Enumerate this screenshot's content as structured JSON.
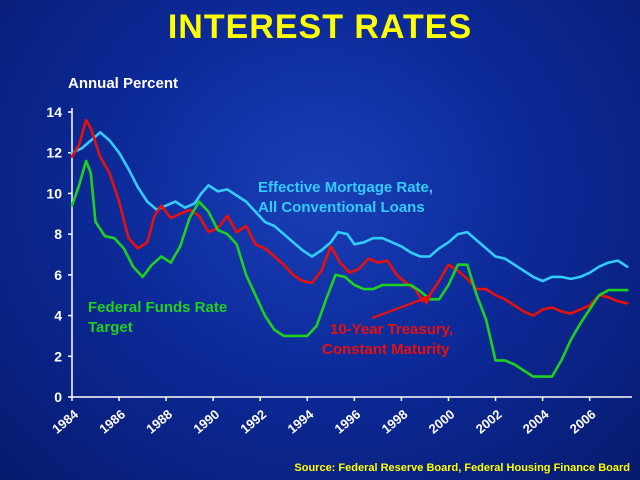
{
  "title": "INTEREST RATES",
  "source": "Source: Federal Reserve Board, Federal Housing Finance Board",
  "colors": {
    "mortgage": "#33ccff",
    "treasury": "#e8100c",
    "fedfunds": "#1fd11f",
    "title": "#ffff00",
    "axis": "#ffffff"
  },
  "chart_data": {
    "type": "line",
    "title": "INTEREST RATES",
    "ylabel": "Annual Percent",
    "xlabel": "",
    "xlim": [
      1984,
      2007.8
    ],
    "ylim": [
      0,
      14
    ],
    "yticks": [
      0,
      2,
      4,
      6,
      8,
      10,
      12,
      14
    ],
    "xticks": [
      1984,
      1986,
      1988,
      1990,
      1992,
      1994,
      1996,
      1998,
      2000,
      2002,
      2004,
      2006
    ],
    "grid": false,
    "annotations": [
      {
        "text": "Effective Mortgage Rate,",
        "series": "mortgage"
      },
      {
        "text": "All Conventional Loans",
        "series": "mortgage"
      },
      {
        "text": "Federal Funds Rate",
        "series": "fedfunds"
      },
      {
        "text": "Target",
        "series": "fedfunds"
      },
      {
        "text": "10-Year Treasury,",
        "series": "treasury"
      },
      {
        "text": "Constant Maturity",
        "series": "treasury"
      }
    ],
    "series": [
      {
        "key": "mortgage",
        "x": [
          1984.0,
          1984.4,
          1984.8,
          1985.2,
          1985.6,
          1986.0,
          1986.4,
          1986.8,
          1987.2,
          1987.6,
          1988.0,
          1988.4,
          1988.8,
          1989.2,
          1989.5,
          1989.8,
          1990.2,
          1990.6,
          1991.0,
          1991.4,
          1991.8,
          1992.2,
          1992.6,
          1993.0,
          1993.4,
          1993.8,
          1994.2,
          1994.6,
          1995.0,
          1995.3,
          1995.7,
          1996.0,
          1996.4,
          1996.8,
          1997.2,
          1997.6,
          1998.0,
          1998.4,
          1998.8,
          1999.2,
          1999.6,
          2000.0,
          2000.4,
          2000.8,
          2001.2,
          2001.6,
          2002.0,
          2002.4,
          2002.8,
          2003.2,
          2003.6,
          2004.0,
          2004.4,
          2004.8,
          2005.2,
          2005.6,
          2006.0,
          2006.4,
          2006.8,
          2007.2,
          2007.6
        ],
        "y": [
          12.0,
          12.2,
          12.6,
          13.0,
          12.6,
          12.0,
          11.2,
          10.3,
          9.6,
          9.2,
          9.4,
          9.6,
          9.3,
          9.5,
          10.0,
          10.4,
          10.1,
          10.2,
          9.9,
          9.6,
          9.1,
          8.6,
          8.4,
          8.0,
          7.6,
          7.2,
          6.9,
          7.2,
          7.6,
          8.1,
          8.0,
          7.5,
          7.6,
          7.8,
          7.8,
          7.6,
          7.4,
          7.1,
          6.9,
          6.9,
          7.3,
          7.6,
          8.0,
          8.1,
          7.7,
          7.3,
          6.9,
          6.8,
          6.5,
          6.2,
          5.9,
          5.7,
          5.9,
          5.9,
          5.8,
          5.9,
          6.1,
          6.4,
          6.6,
          6.7,
          6.4
        ]
      },
      {
        "key": "treasury",
        "x": [
          1984.0,
          1984.3,
          1984.6,
          1984.8,
          1985.2,
          1985.6,
          1986.0,
          1986.4,
          1986.8,
          1987.2,
          1987.5,
          1987.8,
          1988.2,
          1988.6,
          1989.0,
          1989.4,
          1989.8,
          1990.2,
          1990.6,
          1991.0,
          1991.4,
          1991.8,
          1992.2,
          1992.6,
          1993.0,
          1993.4,
          1993.8,
          1994.2,
          1994.6,
          1995.0,
          1995.4,
          1995.8,
          1996.2,
          1996.6,
          1997.0,
          1997.4,
          1997.8,
          1998.2,
          1998.6,
          1998.9,
          1999.2,
          1999.6,
          2000.0,
          2000.4,
          2000.8,
          2001.2,
          2001.6,
          2002.0,
          2002.4,
          2002.8,
          2003.2,
          2003.6,
          2004.0,
          2004.4,
          2004.8,
          2005.2,
          2005.6,
          2006.0,
          2006.4,
          2006.8,
          2007.2,
          2007.6
        ],
        "y": [
          11.8,
          12.4,
          13.6,
          13.2,
          11.8,
          11.0,
          9.6,
          7.8,
          7.3,
          7.6,
          8.9,
          9.4,
          8.8,
          9.0,
          9.2,
          8.9,
          8.1,
          8.3,
          8.9,
          8.1,
          8.4,
          7.5,
          7.3,
          6.9,
          6.5,
          6.0,
          5.7,
          5.6,
          6.2,
          7.4,
          6.6,
          6.1,
          6.3,
          6.8,
          6.6,
          6.7,
          6.0,
          5.6,
          5.3,
          4.7,
          5.0,
          5.7,
          6.5,
          6.2,
          5.8,
          5.3,
          5.3,
          5.0,
          4.8,
          4.5,
          4.2,
          4.0,
          4.3,
          4.4,
          4.2,
          4.1,
          4.3,
          4.5,
          5.0,
          4.9,
          4.7,
          4.6
        ]
      },
      {
        "key": "fedfunds",
        "x": [
          1984.0,
          1984.3,
          1984.6,
          1984.8,
          1985.0,
          1985.4,
          1985.8,
          1986.2,
          1986.6,
          1987.0,
          1987.4,
          1987.8,
          1988.2,
          1988.6,
          1989.0,
          1989.4,
          1989.8,
          1990.2,
          1990.6,
          1991.0,
          1991.4,
          1991.8,
          1992.2,
          1992.6,
          1993.0,
          1993.5,
          1994.0,
          1994.4,
          1994.8,
          1995.2,
          1995.6,
          1996.0,
          1996.4,
          1996.8,
          1997.2,
          1997.6,
          1998.0,
          1998.4,
          1998.8,
          1999.2,
          1999.6,
          2000.0,
          2000.4,
          2000.8,
          2001.2,
          2001.6,
          2002.0,
          2002.4,
          2002.8,
          2003.2,
          2003.6,
          2004.0,
          2004.4,
          2004.8,
          2005.2,
          2005.6,
          2006.0,
          2006.4,
          2006.8,
          2007.2,
          2007.6
        ],
        "y": [
          9.4,
          10.4,
          11.6,
          11.0,
          8.6,
          7.9,
          7.8,
          7.3,
          6.4,
          5.9,
          6.5,
          6.9,
          6.6,
          7.4,
          8.8,
          9.6,
          9.1,
          8.2,
          8.0,
          7.5,
          6.0,
          5.0,
          4.0,
          3.3,
          3.0,
          3.0,
          3.0,
          3.5,
          4.8,
          6.0,
          5.9,
          5.5,
          5.3,
          5.3,
          5.5,
          5.5,
          5.5,
          5.5,
          5.2,
          4.8,
          4.8,
          5.5,
          6.5,
          6.5,
          5.0,
          3.8,
          1.8,
          1.8,
          1.6,
          1.3,
          1.0,
          1.0,
          1.0,
          1.8,
          2.8,
          3.6,
          4.3,
          5.0,
          5.25,
          5.25,
          5.25
        ]
      }
    ]
  }
}
